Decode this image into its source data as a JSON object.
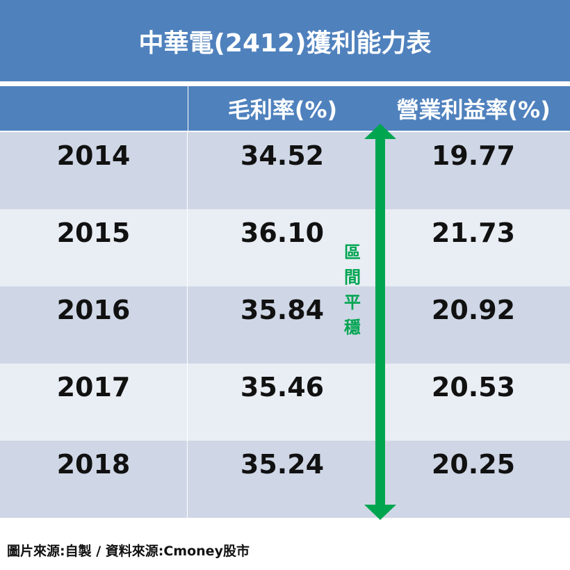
{
  "title": "中華電(2412)獲利能力表",
  "columns": [
    "",
    "毛利率(%)",
    "營業利益率(%)"
  ],
  "annotation": "區間平穩",
  "source": "圖片來源:自製 / 資料來源:Cmoney股市",
  "colors": {
    "header": "#4f81bd",
    "row_dark": "#cfd7e6",
    "row_light": "#e9edf4",
    "arrow": "#00a550"
  },
  "chart_data": {
    "type": "table",
    "title": "中華電(2412)獲利能力表",
    "columns": [
      "",
      "毛利率(%)",
      "營業利益率(%)"
    ],
    "rows": [
      [
        "2014",
        "34.52",
        "19.77"
      ],
      [
        "2015",
        "36.10",
        "21.73"
      ],
      [
        "2016",
        "35.84",
        "20.92"
      ],
      [
        "2017",
        "35.46",
        "20.53"
      ],
      [
        "2018",
        "35.24",
        "20.25"
      ]
    ]
  }
}
